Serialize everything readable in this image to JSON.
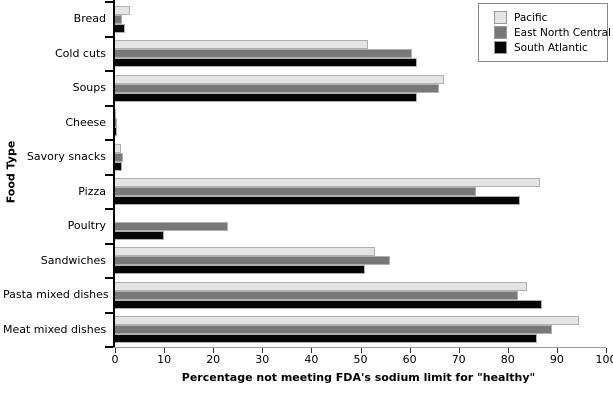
{
  "chart": {
    "y_axis_title": "Food Type",
    "x_axis_title": "Percentage not meeting FDA's sodium limit for \"healthy\""
  },
  "chart_data": {
    "type": "bar",
    "orientation": "horizontal",
    "title": "",
    "xlabel": "Percentage not meeting FDA's sodium limit for \"healthy\"",
    "ylabel": "Food Type",
    "xlim": [
      0,
      100
    ],
    "x_ticks": [
      0,
      10,
      20,
      30,
      40,
      50,
      60,
      70,
      80,
      90,
      100
    ],
    "grid": false,
    "legend_position": "top-right",
    "categories": [
      "Bread",
      "Cold cuts",
      "Soups",
      "Cheese",
      "Savory snacks",
      "Pizza",
      "Poultry",
      "Sandwiches",
      "Pasta mixed dishes",
      "Meat mixed dishes"
    ],
    "series": [
      {
        "name": "Pacific",
        "color": "#e4e4e4",
        "values": [
          3,
          51.5,
          67,
          0.3,
          1.2,
          86.5,
          0,
          53,
          84,
          94.5
        ]
      },
      {
        "name": "East North Central",
        "color": "#787878",
        "values": [
          1.5,
          60.5,
          66,
          0.5,
          1.6,
          73.5,
          23,
          56,
          82,
          89
        ]
      },
      {
        "name": "South Atlantic",
        "color": "#050505",
        "values": [
          2,
          61.5,
          61.5,
          0.5,
          1.4,
          82.5,
          10,
          51,
          87,
          86
        ]
      }
    ]
  }
}
